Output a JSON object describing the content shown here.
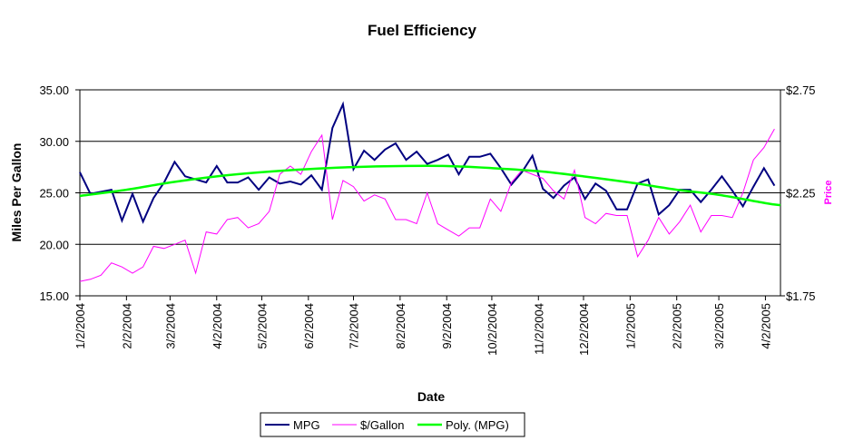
{
  "chart_data": {
    "type": "line",
    "title": "Fuel Efficiency",
    "x_label": "Date",
    "y_label": "Miles Per Gallon",
    "y2_label": "Price",
    "x": [
      "1/2/2004",
      "1/9/2004",
      "1/16/2004",
      "1/23/2004",
      "1/30/2004",
      "2/6/2004",
      "2/13/2004",
      "2/20/2004",
      "2/27/2004",
      "3/5/2004",
      "3/12/2004",
      "3/19/2004",
      "3/26/2004",
      "4/2/2004",
      "4/9/2004",
      "4/16/2004",
      "4/23/2004",
      "4/30/2004",
      "5/7/2004",
      "5/14/2004",
      "5/21/2004",
      "5/28/2004",
      "6/4/2004",
      "6/11/2004",
      "6/18/2004",
      "6/25/2004",
      "7/2/2004",
      "7/9/2004",
      "7/16/2004",
      "7/23/2004",
      "7/30/2004",
      "8/6/2004",
      "8/13/2004",
      "8/20/2004",
      "8/27/2004",
      "9/3/2004",
      "9/10/2004",
      "9/17/2004",
      "9/24/2004",
      "10/1/2004",
      "10/8/2004",
      "10/15/2004",
      "10/22/2004",
      "10/29/2004",
      "11/5/2004",
      "11/12/2004",
      "11/19/2004",
      "11/26/2004",
      "12/3/2004",
      "12/10/2004",
      "12/17/2004",
      "12/24/2004",
      "12/31/2004",
      "1/7/2005",
      "1/14/2005",
      "1/21/2005",
      "1/28/2005",
      "2/4/2005",
      "2/11/2005",
      "2/18/2005",
      "2/25/2005",
      "3/4/2005",
      "3/11/2005",
      "3/18/2005",
      "3/25/2005",
      "4/1/2005",
      "4/8/2005"
    ],
    "series": [
      {
        "name": "MPG",
        "color": "#000080",
        "axis": "y",
        "values": [
          27.0,
          24.9,
          25.1,
          25.3,
          22.3,
          24.9,
          22.2,
          24.5,
          26.0,
          28.0,
          26.6,
          26.3,
          26.0,
          27.6,
          26.0,
          26.0,
          26.5,
          25.3,
          26.5,
          25.9,
          26.1,
          25.8,
          26.7,
          25.3,
          31.3,
          33.6,
          27.3,
          29.1,
          28.2,
          29.2,
          29.8,
          28.2,
          29.0,
          27.8,
          28.2,
          28.7,
          26.8,
          28.5,
          28.5,
          28.8,
          27.4,
          25.8,
          27.0,
          28.6,
          25.4,
          24.5,
          25.7,
          26.5,
          24.4,
          25.9,
          25.2,
          23.4,
          23.4,
          25.9,
          26.3,
          22.9,
          23.8,
          25.3,
          25.3,
          24.1,
          25.3,
          26.6,
          25.2,
          23.7,
          25.6,
          27.4,
          25.7
        ]
      },
      {
        "name": "$/Gallon",
        "color": "#ff00ff",
        "axis": "y2",
        "values": [
          1.82,
          1.83,
          1.85,
          1.91,
          1.89,
          1.86,
          1.89,
          1.99,
          1.98,
          2.0,
          2.02,
          1.86,
          2.06,
          2.05,
          2.12,
          2.13,
          2.08,
          2.1,
          2.16,
          2.34,
          2.38,
          2.34,
          2.45,
          2.53,
          2.12,
          2.31,
          2.28,
          2.21,
          2.24,
          2.22,
          2.12,
          2.12,
          2.1,
          2.25,
          2.1,
          2.07,
          2.04,
          2.08,
          2.08,
          2.22,
          2.16,
          2.3,
          2.36,
          2.34,
          2.32,
          2.26,
          2.22,
          2.36,
          2.13,
          2.1,
          2.15,
          2.14,
          2.14,
          1.94,
          2.02,
          2.13,
          2.05,
          2.11,
          2.19,
          2.06,
          2.14,
          2.14,
          2.13,
          2.25,
          2.41,
          2.47,
          2.56
        ]
      }
    ],
    "trendline": {
      "name": "Poly. (MPG)",
      "color": "#00ff00",
      "x": [
        "1/2/2004",
        "2/2/2004",
        "3/2/2004",
        "4/2/2004",
        "5/2/2004",
        "6/2/2004",
        "7/2/2004",
        "8/2/2004",
        "9/2/2004",
        "10/2/2004",
        "11/2/2004",
        "12/2/2004",
        "1/2/2005",
        "2/2/2005",
        "3/2/2005",
        "4/2/2005",
        "4/12/2005"
      ],
      "values": [
        24.7,
        25.3,
        26.0,
        26.6,
        27.0,
        27.3,
        27.5,
        27.6,
        27.6,
        27.4,
        27.1,
        26.6,
        26.0,
        25.3,
        24.8,
        24.0,
        23.8
      ]
    },
    "xlim": [
      "1/2/2004",
      "4/12/2005"
    ],
    "xticks": [
      "1/2/2004",
      "2/2/2004",
      "3/2/2004",
      "4/2/2004",
      "5/2/2004",
      "6/2/2004",
      "7/2/2004",
      "8/2/2004",
      "9/2/2004",
      "10/2/2004",
      "11/2/2004",
      "12/2/2004",
      "1/2/2005",
      "2/2/2005",
      "3/2/2005",
      "4/2/2005"
    ],
    "ylim": [
      15,
      35
    ],
    "yticks": [
      {
        "value": 15,
        "label": "15.00"
      },
      {
        "value": 20,
        "label": "20.00"
      },
      {
        "value": 25,
        "label": "25.00"
      },
      {
        "value": 30,
        "label": "30.00"
      },
      {
        "value": 35,
        "label": "35.00"
      }
    ],
    "y2lim": [
      1.75,
      2.75
    ],
    "y2ticks": [
      {
        "value": 1.75,
        "label": "$1.75"
      },
      {
        "value": 2.25,
        "label": "$2.25"
      },
      {
        "value": 2.75,
        "label": "$2.75"
      }
    ],
    "grid": true,
    "legend": "bottom"
  }
}
